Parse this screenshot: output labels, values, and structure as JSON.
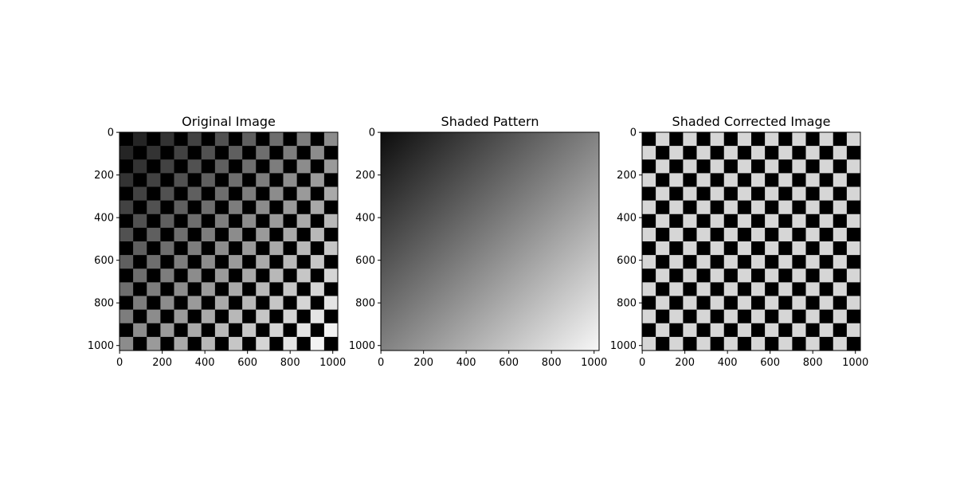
{
  "panels": [
    {
      "title": "Original Image",
      "kind": "original",
      "xticks": [
        "0",
        "200",
        "400",
        "600",
        "800",
        "1000"
      ],
      "yticks": [
        "0",
        "200",
        "400",
        "600",
        "800",
        "1000"
      ]
    },
    {
      "title": "Shaded Pattern",
      "kind": "shading",
      "xticks": [
        "0",
        "200",
        "400",
        "600",
        "800",
        "1000"
      ],
      "yticks": [
        "0",
        "200",
        "400",
        "600",
        "800",
        "1000"
      ]
    },
    {
      "title": "Shaded Corrected Image",
      "kind": "corrected",
      "xticks": [
        "0",
        "200",
        "400",
        "600",
        "800",
        "1000"
      ],
      "yticks": [
        "0",
        "200",
        "400",
        "600",
        "800",
        "1000"
      ]
    }
  ],
  "image_size": 1024,
  "checker_cells": 16,
  "colors": {
    "dark_square": "#000000",
    "corrected_light_square": "#d6d6d6",
    "shading_dark": "#0c0c0c",
    "shading_light": "#f7f7f7",
    "axes_frame": "#000000"
  }
}
